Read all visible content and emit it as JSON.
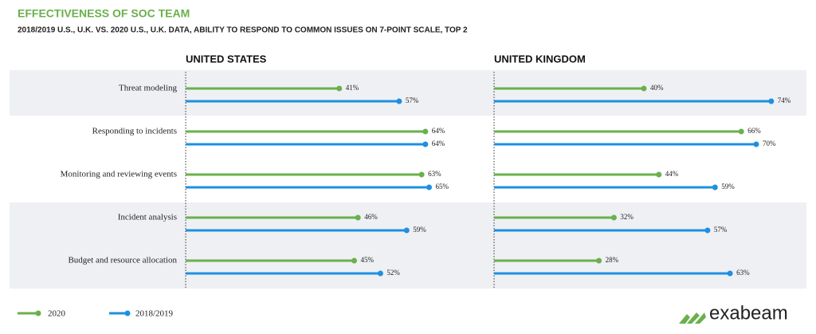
{
  "title": "EFFECTIVENESS OF SOC TEAM",
  "subtitle": "2018/2019 U.S., U.K. VS. 2020 U.S., U.K. DATA, ABILITY TO RESPOND TO COMMON ISSUES ON 7-POINT SCALE, TOP 2",
  "logo": "exabeam",
  "chart_data": [
    {
      "type": "lollipop",
      "title": "UNITED STATES",
      "categories": [
        "Threat modeling",
        "Responding to incidents",
        "Monitoring and reviewing events",
        "Incident analysis",
        "Budget and resource allocation"
      ],
      "xlim": [
        0,
        100
      ],
      "series": [
        {
          "name": "2020",
          "color": "#6ab04c",
          "values": [
            41,
            64,
            63,
            46,
            45
          ],
          "value_labels": [
            "41%",
            "64%",
            "63%",
            "46%",
            "45%"
          ]
        },
        {
          "name": "2018/2019",
          "color": "#1e8fe1",
          "values": [
            57,
            64,
            65,
            59,
            52
          ],
          "value_labels": [
            "57%",
            "64%",
            "65%",
            "59%",
            "52%"
          ]
        }
      ]
    },
    {
      "type": "lollipop",
      "title": "UNITED KINGDOM",
      "xlim": [
        0,
        100
      ],
      "series": [
        {
          "color": "#6ab04c",
          "values": [
            40,
            66,
            44,
            32,
            28
          ],
          "value_labels": [
            "40%",
            "66%",
            "44%",
            "32%",
            "28%"
          ]
        },
        {
          "color": "#1e8fe1",
          "values": [
            74,
            70,
            59,
            57,
            63
          ],
          "value_labels": [
            "74%",
            "70%",
            "59%",
            "57%",
            "63%"
          ]
        }
      ]
    }
  ]
}
